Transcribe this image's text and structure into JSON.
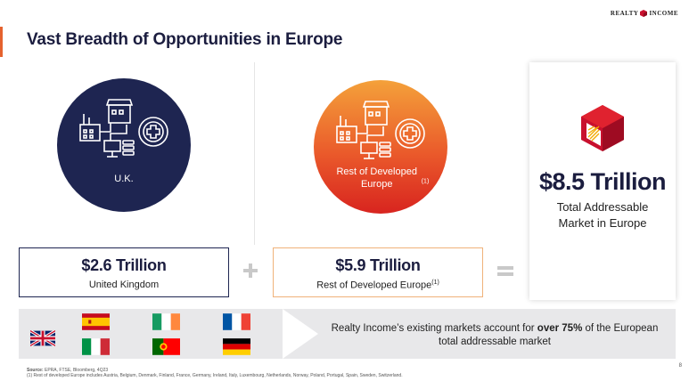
{
  "header": {
    "title": "Vast Breadth of Opportunities in Europe",
    "logo_left": "REALTY",
    "logo_right": "INCOME"
  },
  "uk": {
    "circle_label": "U.K.",
    "value": "$2.6 Trillion",
    "sub": "United Kingdom"
  },
  "europe": {
    "circle_label": "Rest of Developed Europe",
    "circle_note": "(1)",
    "value": "$5.9 Trillion",
    "sub": "Rest of Developed Europe",
    "sub_note": "(1)"
  },
  "total": {
    "value": "$8.5 Trillion",
    "sub_line1": "Total Addressable",
    "sub_line2": "Market in Europe"
  },
  "band": {
    "text_before": "Realty Income’s existing markets account for ",
    "text_bold": "over 75%",
    "text_after": " of the European total addressable market"
  },
  "flags": [
    "United Kingdom",
    "Spain",
    "Ireland",
    "France",
    "Italy",
    "Portugal",
    "Germany"
  ],
  "footer": {
    "source_label": "Source:",
    "source_text": " EPRA, FTSE, Bloomberg, 4Q23",
    "note": "(1) Rest of developed Europe includes Austria, Belgium, Denmark, Finland, France, Germany, Ireland, Italy, Luxembourg, Netherlands, Norway, Poland, Portugal, Spain, Sweden, Switzerland.",
    "page": "8"
  },
  "colors": {
    "navy": "#1e2551",
    "title": "#1b1d3f",
    "accent": "#e5622e",
    "band": "#e8e8ea"
  },
  "icons": [
    "industrial-icon",
    "retail-icon",
    "healthcare-icon",
    "data-center-icon",
    "realty-income-cube-icon"
  ]
}
